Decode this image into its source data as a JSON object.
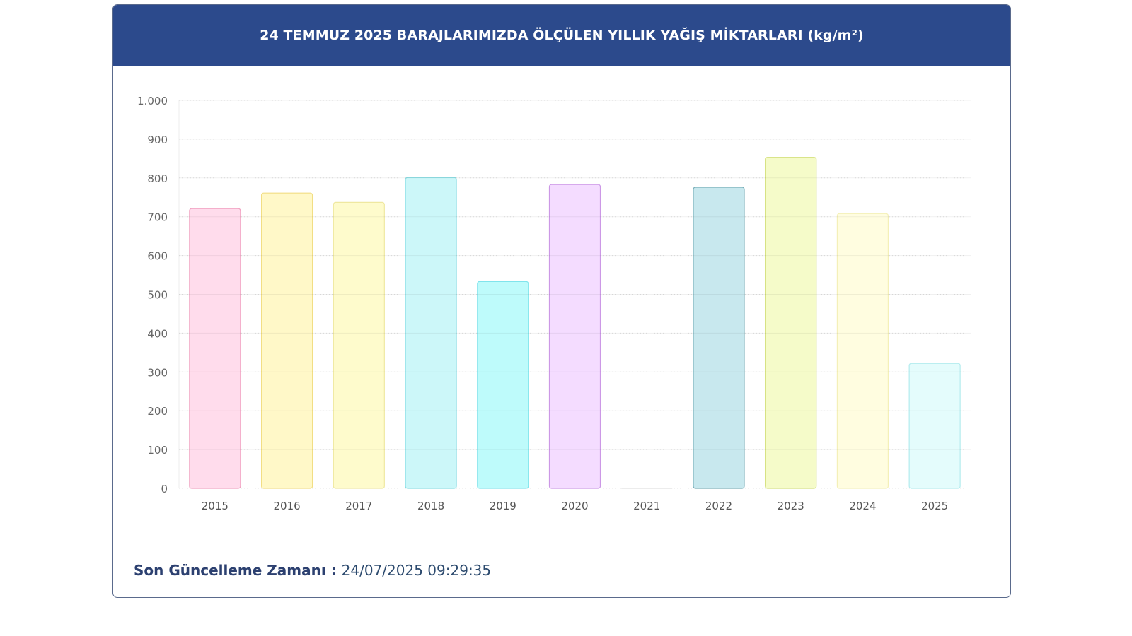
{
  "header": {
    "title": "24 TEMMUZ 2025 BARAJLARIMIZDA ÖLÇÜLEN YILLIK YAĞIŞ MİKTARLARI (kg/m²)"
  },
  "footer": {
    "label": "Son Güncelleme Zamanı",
    "separator": " : ",
    "value": "24/07/2025 09:29:35"
  },
  "chart_data": {
    "type": "bar",
    "title": "24 TEMMUZ 2025 BARAJLARIMIZDA ÖLÇÜLEN YILLIK YAĞIŞ MİKTARLARI (kg/m²)",
    "categories": [
      "2015",
      "2016",
      "2017",
      "2018",
      "2019",
      "2020",
      "2021",
      "2022",
      "2023",
      "2024",
      "2025"
    ],
    "values": [
      721,
      761,
      737,
      801,
      533,
      783,
      0,
      776,
      853,
      708,
      322
    ],
    "ylim": [
      0,
      1000
    ],
    "yticks": [
      {
        "value": 0,
        "label": "0"
      },
      {
        "value": 100,
        "label": "100"
      },
      {
        "value": 200,
        "label": "200"
      },
      {
        "value": 300,
        "label": "300"
      },
      {
        "value": 400,
        "label": "400"
      },
      {
        "value": 500,
        "label": "500"
      },
      {
        "value": 600,
        "label": "600"
      },
      {
        "value": 700,
        "label": "700"
      },
      {
        "value": 800,
        "label": "800"
      },
      {
        "value": 900,
        "label": "900"
      },
      {
        "value": 1000,
        "label": "1.000"
      }
    ],
    "grid": true,
    "legend": "none",
    "colors": {
      "fill": [
        "#ffdcec",
        "#fff8c8",
        "#fefbcc",
        "#ccf7f9",
        "#befbfb",
        "#f4dcff",
        "#ffffff",
        "#c8e8ee",
        "#f5fbc9",
        "#fffde0",
        "#e4fcfc"
      ],
      "stroke": [
        "#f0a0c0",
        "#f2de84",
        "#efe8a0",
        "#88dde4",
        "#80e4ec",
        "#cc98e6",
        "#d8d8d8",
        "#78aeb8",
        "#d4e07a",
        "#f4f0b8",
        "#b4ecee"
      ]
    }
  }
}
